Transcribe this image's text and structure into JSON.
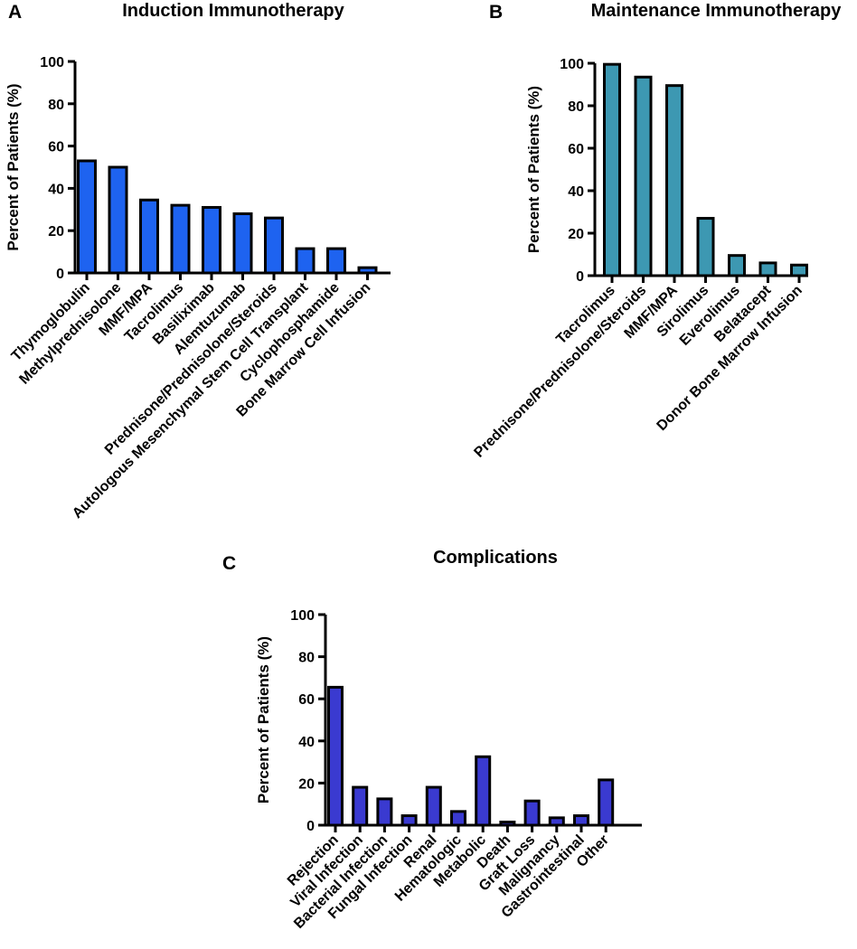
{
  "chart_data": [
    {
      "type": "bar",
      "panel": "A",
      "title": "Induction Immunotherapy",
      "xlabel": "",
      "ylabel": "Percent of Patients (%)",
      "ylim": [
        0,
        100
      ],
      "yticks": [
        0,
        20,
        40,
        60,
        80,
        100
      ],
      "categories": [
        "Thymoglobulin",
        "Methylprednisolone",
        "MMF/MPA",
        "Tacrolimus",
        "Basiliximab",
        "Alemtuzumab",
        "Prednisone/Prednisolone/Steroids",
        "Autologous Mesenchymal Stem Cell Transplant",
        "Cyclophosphamide",
        "Bone Marrow Cell Infusion"
      ],
      "values": [
        53,
        50,
        34.5,
        32,
        31,
        28,
        26,
        11.5,
        11.5,
        2.5
      ],
      "color": "#1e63f0"
    },
    {
      "type": "bar",
      "panel": "B",
      "title": "Maintenance Immunotherapy",
      "xlabel": "",
      "ylabel": "Percent of Patients (%)",
      "ylim": [
        0,
        100
      ],
      "yticks": [
        0,
        20,
        40,
        60,
        80,
        100
      ],
      "categories": [
        "Tacrolimus",
        "Prednisone/Prednisolone/Steroids",
        "MMF/MPA",
        "Sirolimus",
        "Everolimus",
        "Belatacept",
        "Donor Bone Marrow Infusion"
      ],
      "values": [
        99.5,
        93.5,
        89.5,
        27,
        9.5,
        6,
        5
      ],
      "color": "#3d98b2"
    },
    {
      "type": "bar",
      "panel": "C",
      "title": "Complications",
      "xlabel": "",
      "ylabel": "Percent of Patients (%)",
      "ylim": [
        0,
        100
      ],
      "yticks": [
        0,
        20,
        40,
        60,
        80,
        100
      ],
      "categories": [
        "Rejection",
        "Viral Infection",
        "Bacterial Infection",
        "Fungal Infection",
        "Renal",
        "Hematologic",
        "Metabolic",
        "Death",
        "Graft Loss",
        "Malignancy",
        "Gastrointestinal",
        "Other"
      ],
      "values": [
        65.5,
        18,
        12.5,
        4.5,
        18,
        6.5,
        32.5,
        1.5,
        11.5,
        3.5,
        4.5,
        21.5
      ],
      "color": "#3a3ad0"
    }
  ]
}
